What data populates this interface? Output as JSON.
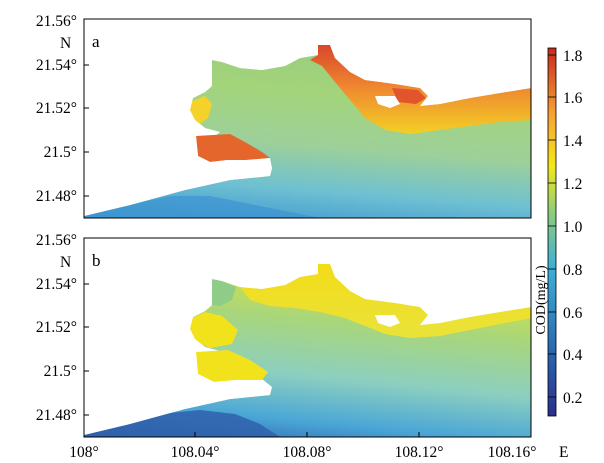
{
  "panels": [
    {
      "label": "a",
      "north_label": "N",
      "lat_ticks": [
        "21.56°",
        "21.54°",
        "21.52°",
        "21.5°",
        "21.48°"
      ],
      "description": "surface COD field, high values near the northern shore"
    },
    {
      "label": "b",
      "north_label": "N",
      "lat_ticks": [
        "21.56°",
        "21.54°",
        "21.52°",
        "21.5°",
        "21.48°"
      ],
      "description": "surface COD field, moderate values near the northern shore"
    }
  ],
  "lon_ticks": [
    "108°",
    "108.04°",
    "108.08°",
    "108.12°",
    "108.16°"
  ],
  "east_label": "E",
  "colorbar": {
    "label": "COD(mg/L)",
    "ticks": [
      "1.8",
      "1.6",
      "1.4",
      "1.2",
      "1.0",
      "0.8",
      "0.6",
      "0.4",
      "0.2"
    ],
    "colormap": "jet-like",
    "colors": [
      "#2c2f8c",
      "#2a6fb5",
      "#3cb0d8",
      "#8ccd7c",
      "#f3e819",
      "#f7a233",
      "#c8281e"
    ]
  }
}
